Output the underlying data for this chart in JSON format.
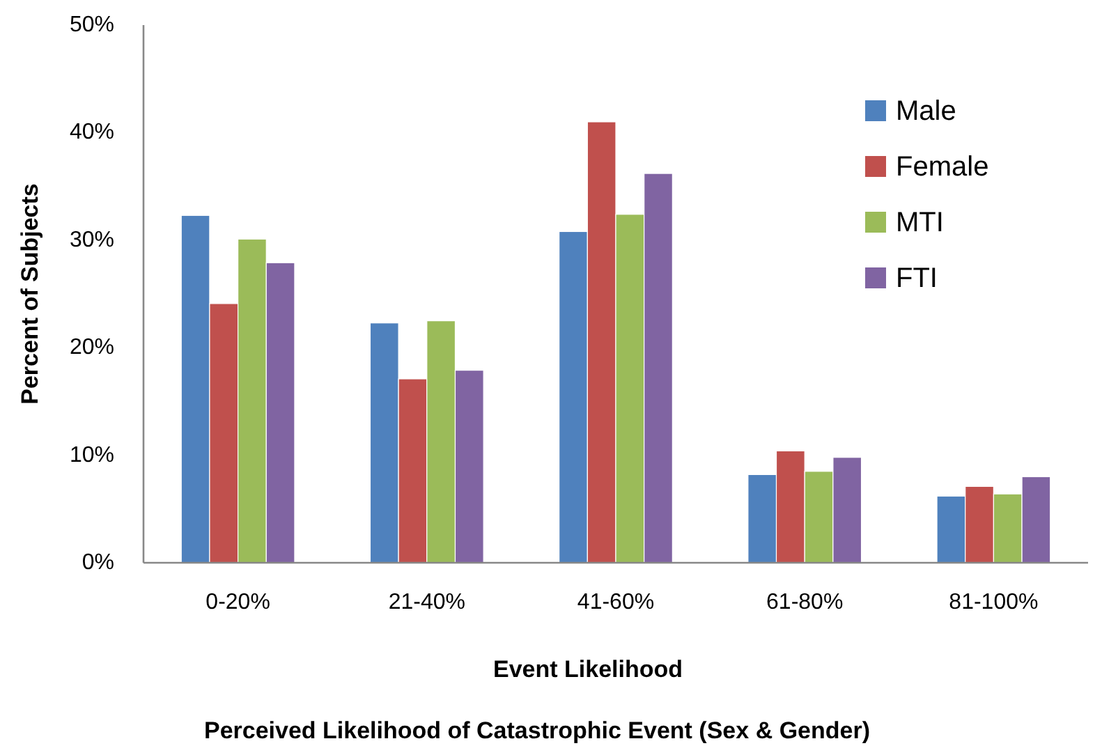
{
  "chart_data": {
    "type": "bar",
    "title": "Perceived Likelihood of Catastrophic Event (Sex & Gender)",
    "xlabel": "Event Likelihood",
    "ylabel": "Percent of Subjects",
    "categories": [
      "0-20%",
      "21-40%",
      "41-60%",
      "61-80%",
      "81-100%"
    ],
    "series": [
      {
        "name": "Male",
        "color": "#4f81bd",
        "values": [
          32.3,
          22.3,
          30.8,
          8.2,
          6.2
        ]
      },
      {
        "name": "Female",
        "color": "#c0504d",
        "values": [
          24.1,
          17.1,
          41.0,
          10.4,
          7.1
        ]
      },
      {
        "name": "MTI",
        "color": "#9bbb59",
        "values": [
          30.1,
          22.5,
          32.4,
          8.5,
          6.4
        ]
      },
      {
        "name": "FTI",
        "color": "#8064a2",
        "values": [
          27.9,
          17.9,
          36.2,
          9.8,
          8.0
        ]
      }
    ],
    "ylim": [
      0,
      50
    ],
    "yticks": [
      {
        "value": 0,
        "label": "0%"
      },
      {
        "value": 10,
        "label": "10%"
      },
      {
        "value": 20,
        "label": "20%"
      },
      {
        "value": 30,
        "label": "30%"
      },
      {
        "value": 40,
        "label": "40%"
      },
      {
        "value": 50,
        "label": "50%"
      }
    ],
    "grid": false,
    "legend": "top right"
  }
}
